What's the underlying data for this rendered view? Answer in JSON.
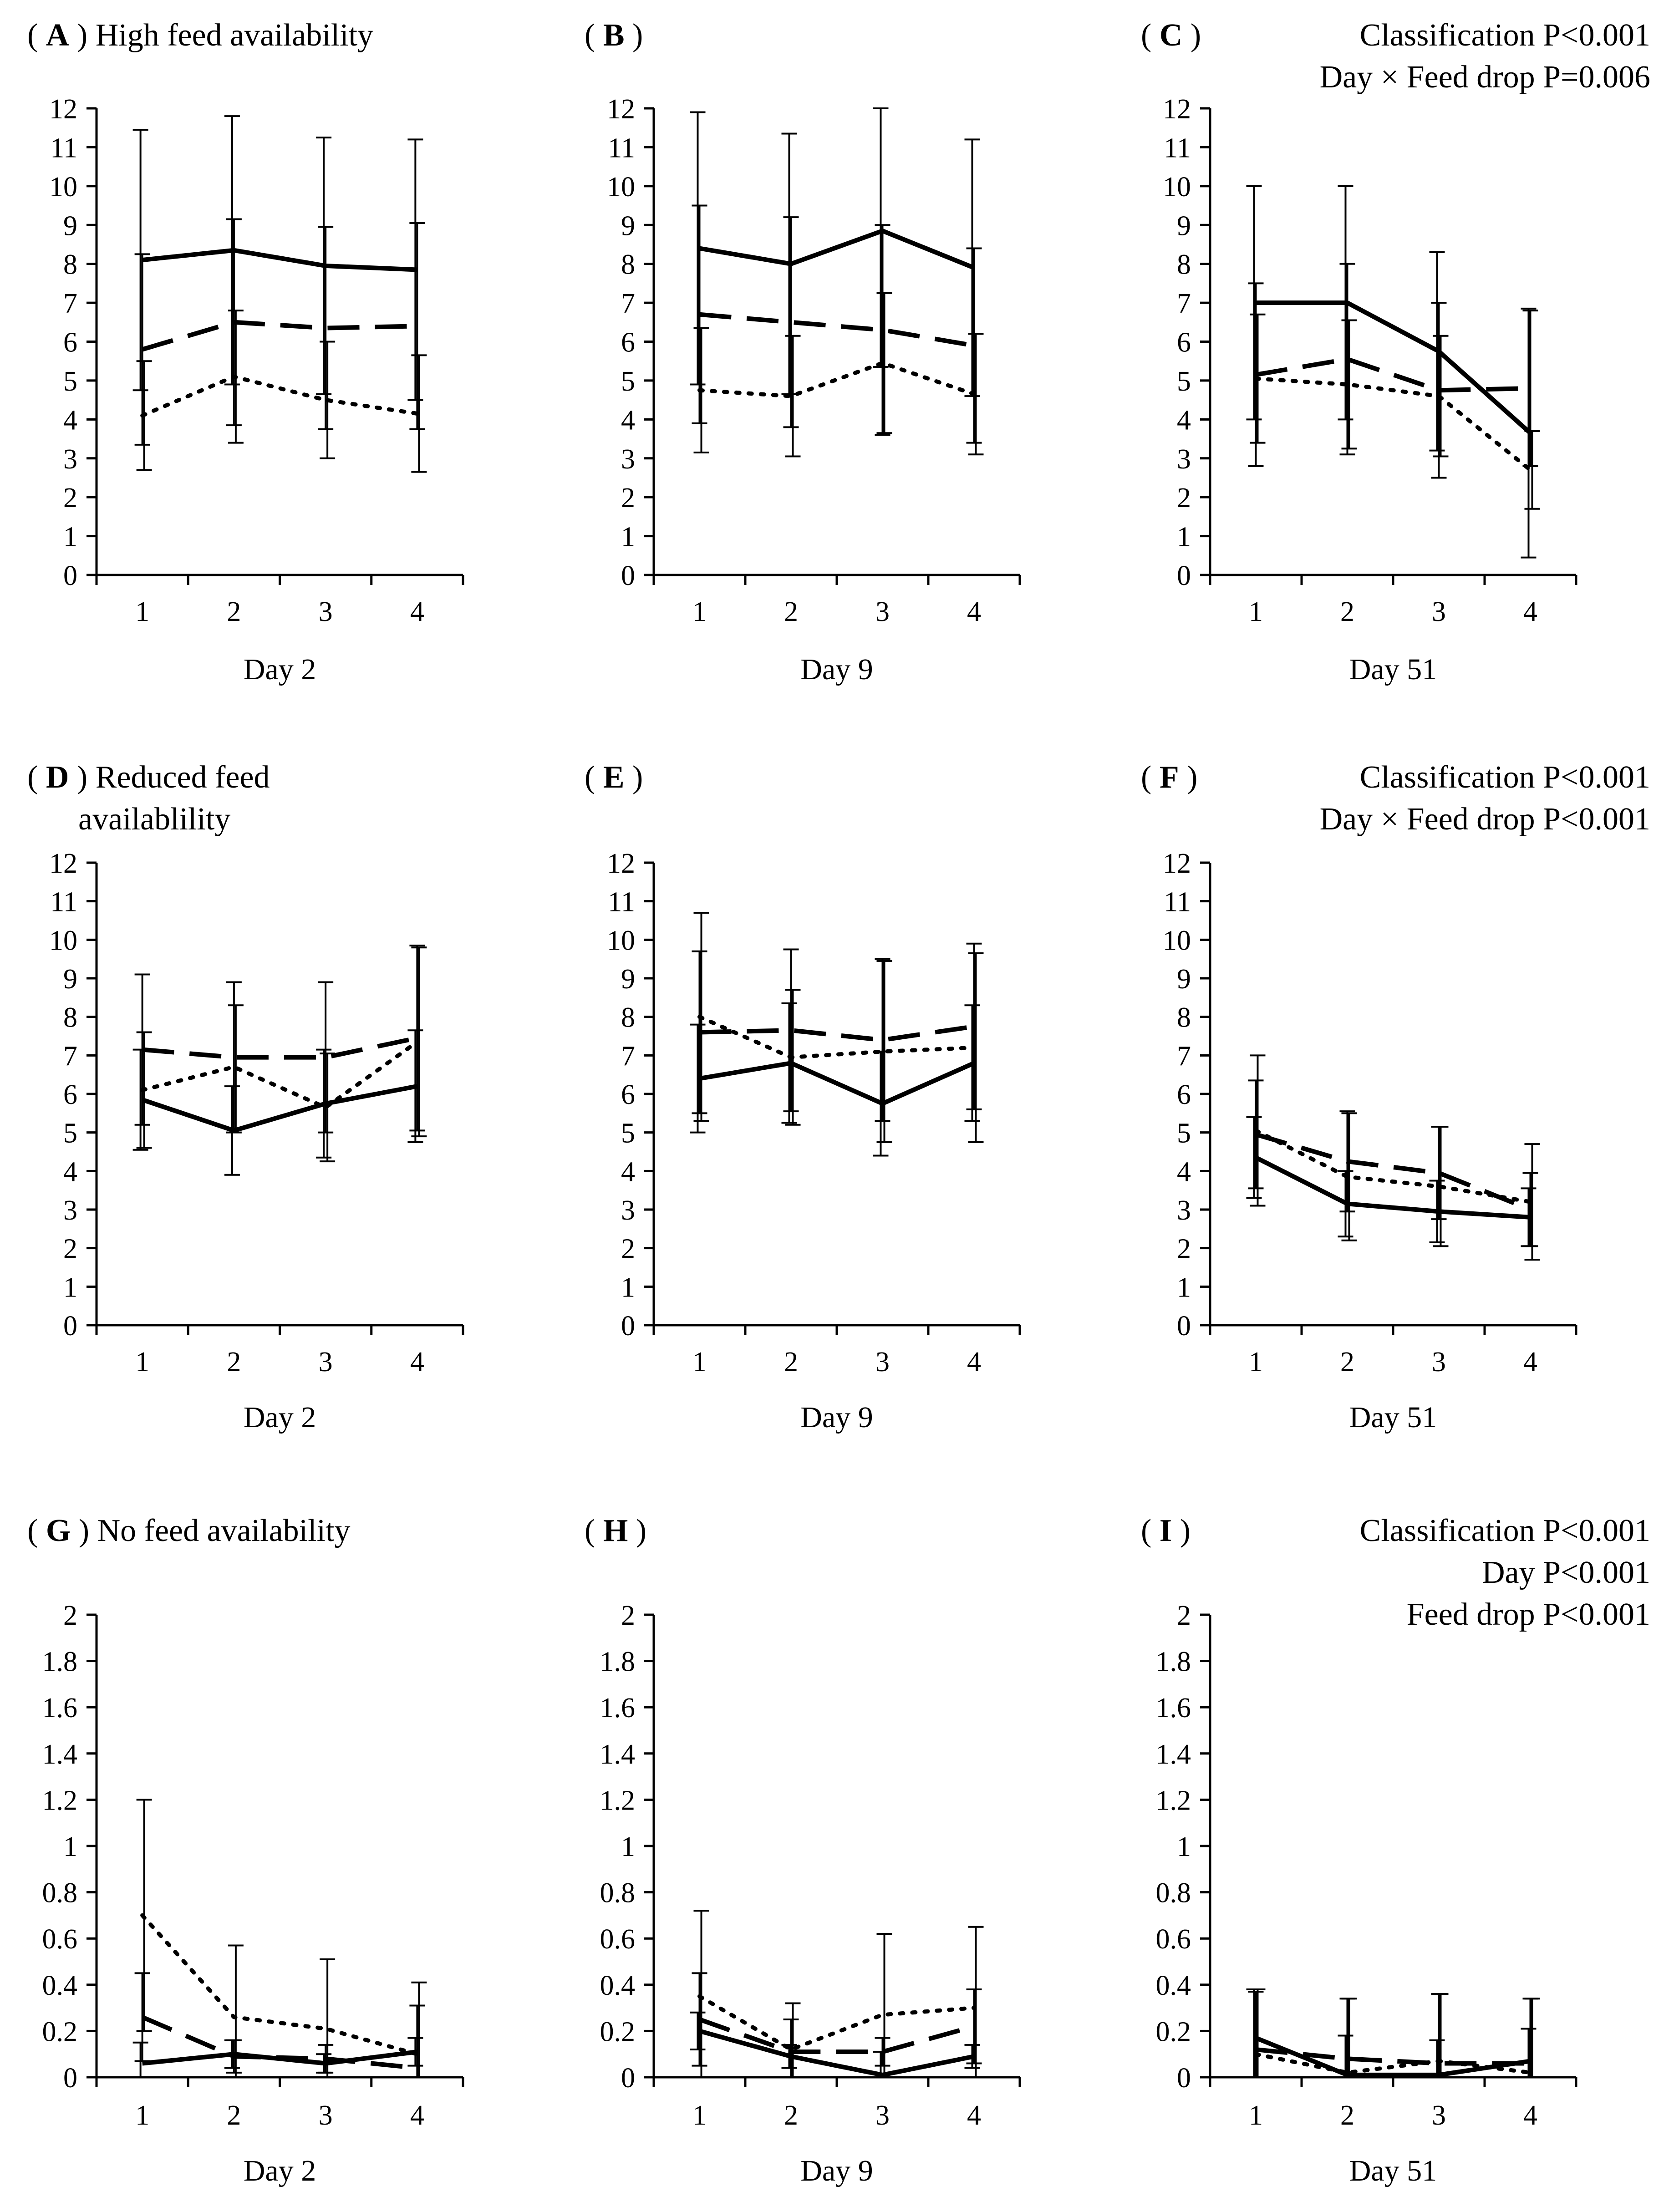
{
  "figure_title": "Multi-panel line chart with error bars",
  "chart_data": [
    {
      "id": "A",
      "type": "line",
      "panel_letter": "A",
      "title": "High feed availability",
      "xlabel": "Day 2",
      "categories": [
        "1",
        "2",
        "3",
        "4"
      ],
      "ylim": [
        0,
        12
      ],
      "yticks": [
        "0",
        "1",
        "2",
        "3",
        "4",
        "5",
        "6",
        "7",
        "8",
        "9",
        "10",
        "11",
        "12"
      ],
      "stats": [],
      "series": [
        {
          "name": "solid",
          "style": "solid",
          "values": [
            8.1,
            8.35,
            7.95,
            7.85
          ],
          "err": [
            3.35,
            3.45,
            3.3,
            3.35
          ]
        },
        {
          "name": "dashed",
          "style": "dashed",
          "values": [
            5.8,
            6.5,
            6.35,
            6.4
          ],
          "err": [
            2.45,
            2.65,
            2.6,
            2.65
          ]
        },
        {
          "name": "dotted",
          "style": "dotted",
          "values": [
            4.1,
            5.1,
            4.5,
            4.15
          ],
          "err": [
            1.4,
            1.7,
            1.5,
            1.5
          ]
        }
      ]
    },
    {
      "id": "B",
      "type": "line",
      "panel_letter": "B",
      "title": "",
      "xlabel": "Day 9",
      "categories": [
        "1",
        "2",
        "3",
        "4"
      ],
      "ylim": [
        0,
        12
      ],
      "yticks": [
        "0",
        "1",
        "2",
        "3",
        "4",
        "5",
        "6",
        "7",
        "8",
        "9",
        "10",
        "11",
        "12"
      ],
      "stats": [],
      "series": [
        {
          "name": "solid",
          "style": "solid",
          "values": [
            8.4,
            8.0,
            8.85,
            7.9
          ],
          "err": [
            3.5,
            3.35,
            3.5,
            3.3
          ]
        },
        {
          "name": "dashed",
          "style": "dashed",
          "values": [
            6.7,
            6.5,
            6.3,
            5.9
          ],
          "err": [
            2.8,
            2.7,
            2.7,
            2.5
          ]
        },
        {
          "name": "dotted",
          "style": "dotted",
          "values": [
            4.75,
            4.6,
            5.45,
            4.65
          ],
          "err": [
            1.6,
            1.55,
            1.8,
            1.55
          ]
        }
      ]
    },
    {
      "id": "C",
      "type": "line",
      "panel_letter": "C",
      "title": "",
      "xlabel": "Day 51",
      "categories": [
        "1",
        "2",
        "3",
        "4"
      ],
      "ylim": [
        0,
        12
      ],
      "yticks": [
        "0",
        "1",
        "2",
        "3",
        "4",
        "5",
        "6",
        "7",
        "8",
        "9",
        "10",
        "11",
        "12"
      ],
      "stats": [
        "Classification P<0.001",
        "Day × Feed drop P=0.006"
      ],
      "series": [
        {
          "name": "solid",
          "style": "solid",
          "values": [
            7.0,
            7.0,
            5.75,
            3.65
          ],
          "err": [
            3.0,
            3.0,
            2.55,
            3.2
          ]
        },
        {
          "name": "dashed",
          "style": "dashed",
          "values": [
            5.15,
            5.55,
            4.75,
            4.8
          ],
          "err": [
            2.35,
            2.45,
            2.25,
            2.0
          ]
        },
        {
          "name": "dotted",
          "style": "dotted",
          "values": [
            5.05,
            4.9,
            4.6,
            2.7
          ],
          "err": [
            1.65,
            1.65,
            1.55,
            1.0
          ]
        }
      ]
    },
    {
      "id": "D",
      "type": "line",
      "panel_letter": "D",
      "title": "Reduced feed",
      "title_line2": "availablility",
      "xlabel": "Day 2",
      "categories": [
        "1",
        "2",
        "3",
        "4"
      ],
      "ylim": [
        0,
        12
      ],
      "yticks": [
        "0",
        "1",
        "2",
        "3",
        "4",
        "5",
        "6",
        "7",
        "8",
        "9",
        "10",
        "11",
        "12"
      ],
      "stats": [],
      "series": [
        {
          "name": "solid",
          "style": "solid",
          "values": [
            5.85,
            5.05,
            5.75,
            6.2
          ],
          "err": [
            1.3,
            1.15,
            1.4,
            1.45
          ]
        },
        {
          "name": "dashed",
          "style": "dashed",
          "values": [
            7.15,
            6.95,
            6.95,
            7.45
          ],
          "err": [
            1.95,
            1.95,
            1.95,
            2.4
          ]
        },
        {
          "name": "dotted",
          "style": "dotted",
          "values": [
            6.1,
            6.7,
            5.65,
            7.35
          ],
          "err": [
            1.5,
            1.6,
            1.4,
            2.45
          ]
        }
      ]
    },
    {
      "id": "E",
      "type": "line",
      "panel_letter": "E",
      "title": "",
      "xlabel": "Day 9",
      "categories": [
        "1",
        "2",
        "3",
        "4"
      ],
      "ylim": [
        0,
        12
      ],
      "yticks": [
        "0",
        "1",
        "2",
        "3",
        "4",
        "5",
        "6",
        "7",
        "8",
        "9",
        "10",
        "11",
        "12"
      ],
      "stats": [],
      "series": [
        {
          "name": "solid",
          "style": "solid",
          "values": [
            6.4,
            6.8,
            5.75,
            6.8
          ],
          "err": [
            1.4,
            1.55,
            1.35,
            1.5
          ]
        },
        {
          "name": "dashed",
          "style": "dashed",
          "values": [
            7.6,
            7.65,
            7.4,
            7.75
          ],
          "err": [
            2.1,
            2.1,
            2.1,
            2.15
          ]
        },
        {
          "name": "dotted",
          "style": "dotted",
          "values": [
            8.0,
            6.95,
            7.1,
            7.2
          ],
          "err": [
            2.7,
            1.75,
            2.35,
            2.45
          ]
        }
      ]
    },
    {
      "id": "F",
      "type": "line",
      "panel_letter": "F",
      "title": "",
      "xlabel": "Day 51",
      "categories": [
        "1",
        "2",
        "3",
        "4"
      ],
      "ylim": [
        0,
        12
      ],
      "yticks": [
        "0",
        "1",
        "2",
        "3",
        "4",
        "5",
        "6",
        "7",
        "8",
        "9",
        "10",
        "11",
        "12"
      ],
      "stats": [
        "Classification P<0.001",
        "Day × Feed drop P<0.001"
      ],
      "series": [
        {
          "name": "solid",
          "style": "solid",
          "values": [
            4.35,
            3.15,
            2.95,
            2.8
          ],
          "err": [
            1.05,
            0.85,
            0.8,
            0.75
          ]
        },
        {
          "name": "dashed",
          "style": "dashed",
          "values": [
            4.95,
            4.25,
            3.95,
            3.0
          ],
          "err": [
            1.4,
            1.3,
            1.2,
            0.95
          ]
        },
        {
          "name": "dotted",
          "style": "dotted",
          "values": [
            5.05,
            3.85,
            3.6,
            3.2
          ],
          "err": [
            1.95,
            1.65,
            1.55,
            1.5
          ]
        }
      ]
    },
    {
      "id": "G",
      "type": "line",
      "panel_letter": "G",
      "title": "No feed availability",
      "xlabel": "Day 2",
      "categories": [
        "1",
        "2",
        "3",
        "4"
      ],
      "ylim": [
        0,
        2
      ],
      "yticks": [
        "0",
        "0.2",
        "0.4",
        "0.6",
        "0.8",
        "1",
        "1.2",
        "1.4",
        "1.6",
        "1.8",
        "2"
      ],
      "stats": [],
      "series": [
        {
          "name": "solid",
          "style": "solid",
          "values": [
            0.06,
            0.1,
            0.06,
            0.11
          ],
          "err": [
            0.09,
            0.06,
            0.04,
            0.06
          ]
        },
        {
          "name": "dashed",
          "style": "dashed",
          "values": [
            0.26,
            0.09,
            0.08,
            0.04
          ],
          "err": [
            0.19,
            0.07,
            0.06,
            0.27
          ]
        },
        {
          "name": "dotted",
          "style": "dotted",
          "values": [
            0.7,
            0.26,
            0.21,
            0.1
          ],
          "err": [
            0.5,
            0.31,
            0.3,
            0.31
          ]
        }
      ]
    },
    {
      "id": "H",
      "type": "line",
      "panel_letter": "H",
      "title": "",
      "xlabel": "Day 9",
      "categories": [
        "1",
        "2",
        "3",
        "4"
      ],
      "ylim": [
        0,
        2
      ],
      "yticks": [
        "0",
        "0.2",
        "0.4",
        "0.6",
        "0.8",
        "1",
        "1.2",
        "1.4",
        "1.6",
        "1.8",
        "2"
      ],
      "stats": [],
      "series": [
        {
          "name": "solid",
          "style": "solid",
          "values": [
            0.2,
            0.09,
            0.01,
            0.09
          ],
          "err": [
            0.08,
            0.05,
            0.1,
            0.05
          ]
        },
        {
          "name": "dashed",
          "style": "dashed",
          "values": [
            0.25,
            0.11,
            0.11,
            0.22
          ],
          "err": [
            0.2,
            0.14,
            0.06,
            0.16
          ]
        },
        {
          "name": "dotted",
          "style": "dotted",
          "values": [
            0.35,
            0.12,
            0.27,
            0.3
          ],
          "err": [
            0.37,
            0.2,
            0.35,
            0.35
          ]
        }
      ]
    },
    {
      "id": "I",
      "type": "line",
      "panel_letter": "I",
      "title": "",
      "xlabel": "Day 51",
      "categories": [
        "1",
        "2",
        "3",
        "4"
      ],
      "ylim": [
        0,
        2
      ],
      "yticks": [
        "0",
        "0.2",
        "0.4",
        "0.6",
        "0.8",
        "1",
        "1.2",
        "1.4",
        "1.6",
        "1.8",
        "2"
      ],
      "stats": [
        "Classification P<0.001",
        "Day P<0.001",
        "Feed drop P<0.001"
      ],
      "series": [
        {
          "name": "solid",
          "style": "solid",
          "values": [
            0.17,
            0.01,
            0.01,
            0.07
          ],
          "err": [
            0.21,
            0.17,
            0.15,
            0.14
          ]
        },
        {
          "name": "dashed",
          "style": "dashed",
          "values": [
            0.12,
            0.08,
            0.06,
            0.06
          ],
          "err": [
            0.25,
            0.26,
            0.3,
            0.28
          ]
        },
        {
          "name": "dotted",
          "style": "dotted",
          "values": [
            0.1,
            0.02,
            0.07,
            0.02
          ],
          "err": [
            0.28,
            0.32,
            0.29,
            0.32
          ]
        }
      ]
    }
  ]
}
